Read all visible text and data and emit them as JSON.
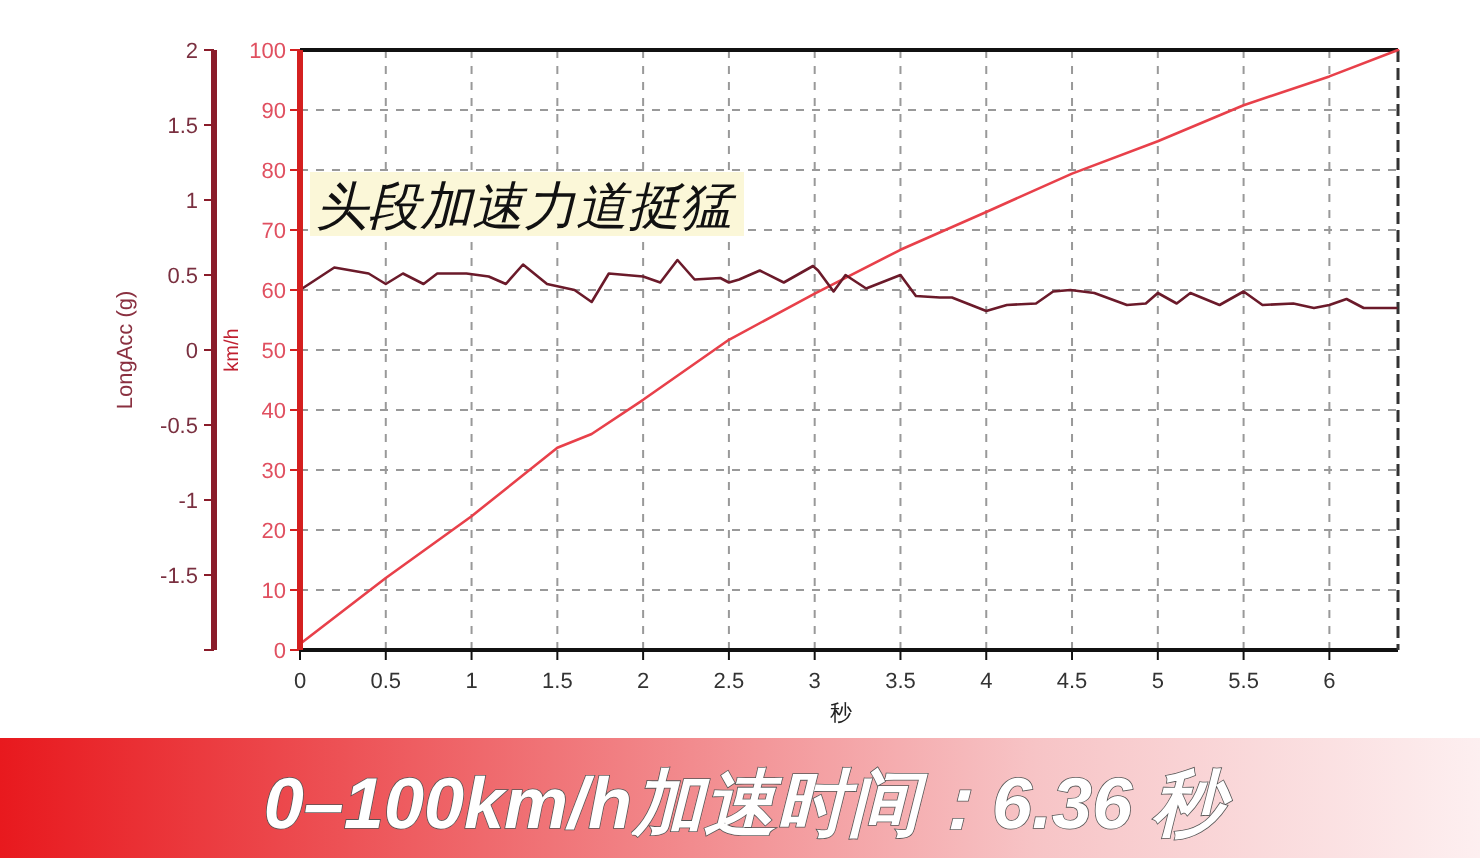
{
  "chart_data": {
    "type": "line",
    "title": "0–100km/h加速时间：6.36 秒",
    "xlabel": "秒",
    "ylabel": "km/h",
    "y2label": "LongAcc (g)",
    "annotations": [
      "头段加速力道挺猛"
    ],
    "xlim": [
      0,
      6.4
    ],
    "xticks": [
      0,
      0.5,
      1,
      1.5,
      2,
      2.5,
      3,
      3.5,
      4,
      4.5,
      5,
      5.5,
      6
    ],
    "ylim": [
      0,
      100
    ],
    "yticks": [
      0,
      10,
      20,
      30,
      40,
      50,
      60,
      70,
      80,
      90,
      100
    ],
    "y2lim": [
      -2,
      2
    ],
    "y2ticks": [
      {
        "value": -2,
        "label": null
      },
      -1.5,
      -1,
      -0.5,
      0,
      0.5,
      1,
      1.5,
      2
    ],
    "grid": true,
    "series": [
      {
        "color": "#e8404a",
        "x": [
          0,
          0.5,
          1,
          1.5,
          1.7,
          2,
          2.5,
          3,
          3.5,
          4,
          4.5,
          5,
          5.5,
          6,
          6.4
        ],
        "values": [
          1,
          12,
          22.3,
          33.7,
          36,
          41.7,
          51.7,
          59.4,
          66.7,
          73,
          79.4,
          84.8,
          90.8,
          95.6,
          100
        ]
      },
      {
        "color": "#6b1a2a",
        "axis": "y2",
        "x": [
          0,
          0.2,
          0.4,
          0.5,
          0.6,
          0.72,
          0.8,
          0.97,
          1.1,
          1.2,
          1.3,
          1.44,
          1.6,
          1.7,
          1.8,
          2.0,
          2.1,
          2.2,
          2.3,
          2.45,
          2.5,
          2.56,
          2.68,
          2.82,
          2.99,
          3.02,
          3.11,
          3.18,
          3.3,
          3.5,
          3.59,
          3.73,
          3.8,
          4.0,
          4.12,
          4.29,
          4.39,
          4.49,
          4.63,
          4.82,
          4.93,
          5.0,
          5.11,
          5.19,
          5.36,
          5.5,
          5.61,
          5.79,
          5.91,
          6.0,
          6.1,
          6.2,
          6.39
        ],
        "values": [
          0.4,
          0.55,
          0.51,
          0.44,
          0.51,
          0.44,
          0.51,
          0.51,
          0.49,
          0.44,
          0.57,
          0.44,
          0.4,
          0.32,
          0.51,
          0.49,
          0.45,
          0.6,
          0.47,
          0.48,
          0.45,
          0.47,
          0.53,
          0.45,
          0.56,
          0.53,
          0.39,
          0.5,
          0.41,
          0.5,
          0.36,
          0.35,
          0.35,
          0.26,
          0.3,
          0.31,
          0.39,
          0.4,
          0.38,
          0.3,
          0.31,
          0.38,
          0.31,
          0.38,
          0.3,
          0.39,
          0.3,
          0.31,
          0.28,
          0.3,
          0.34,
          0.28,
          0.28
        ]
      }
    ]
  }
}
